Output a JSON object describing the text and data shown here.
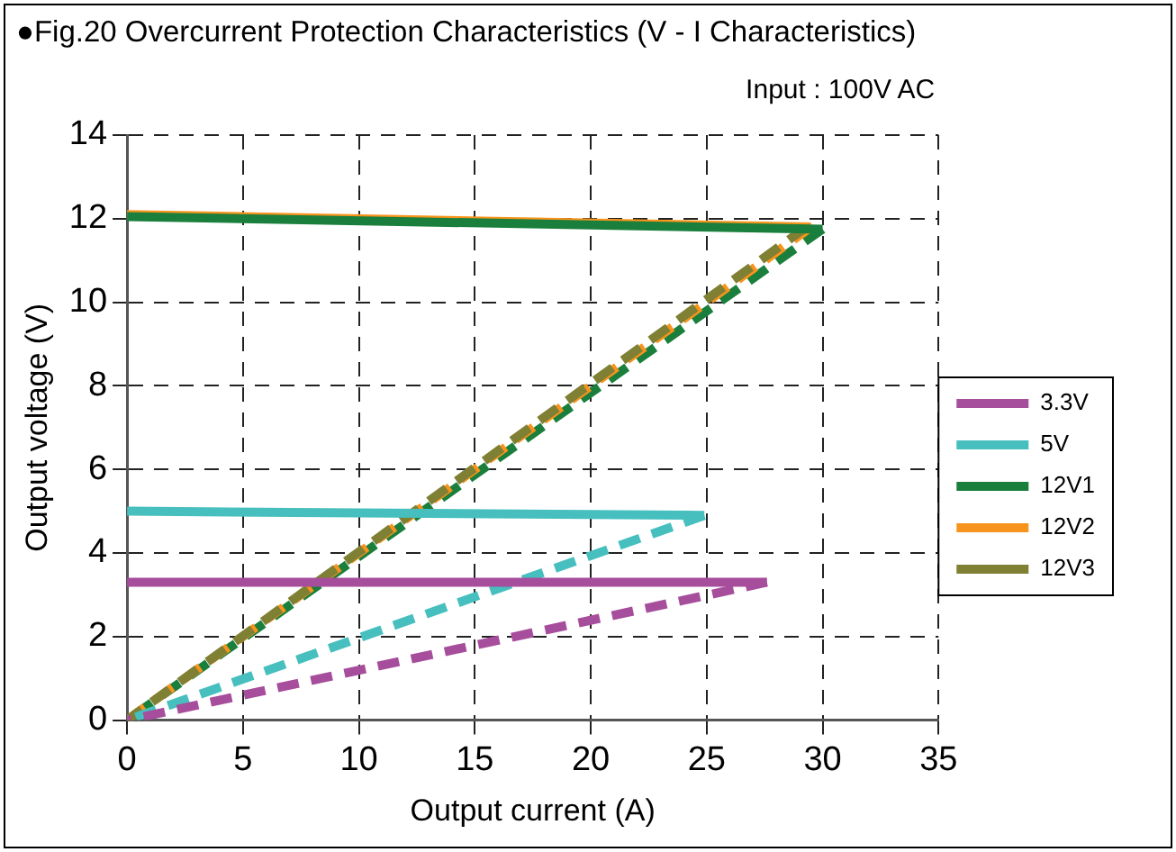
{
  "chart_data": {
    "type": "line",
    "title": "●Fig.20 Overcurrent Protection Characteristics (V - I Characteristics)",
    "xlabel": "Output current (A)",
    "ylabel": "Output voltage (V)",
    "annotations": [
      "Input : 100V AC"
    ],
    "xlim": [
      0,
      35
    ],
    "xticks": [
      0,
      5,
      10,
      15,
      20,
      25,
      30,
      35
    ],
    "ylim": [
      0,
      14
    ],
    "yticks": [
      0,
      2,
      4,
      6,
      8,
      10,
      12,
      14
    ],
    "grid": true,
    "legend": "right",
    "marker": "none",
    "series": [
      {
        "name": "3.3V",
        "color": "#a64d9c",
        "x": [
          0,
          27.6
        ],
        "values": [
          3.3,
          3.3
        ],
        "line_style": "solid"
      },
      {
        "name": "5V",
        "color": "#47bfbf",
        "x": [
          0,
          24.9
        ],
        "values": [
          5.0,
          4.9
        ],
        "line_style": "solid"
      },
      {
        "name": "12V1",
        "color": "#1a7f3c",
        "x": [
          0,
          30
        ],
        "values": [
          12.05,
          11.75
        ],
        "line_style": "solid"
      },
      {
        "name": "12V2",
        "color": "#f7941d",
        "x": [
          0,
          29.5
        ],
        "values": [
          12.1,
          11.8
        ],
        "line_style": "solid"
      },
      {
        "color": "#a64d9c",
        "x": [
          27.6,
          0
        ],
        "values": [
          3.3,
          0
        ],
        "line_style": "dashed"
      },
      {
        "color": "#47bfbf",
        "x": [
          24.9,
          0
        ],
        "values": [
          4.9,
          0
        ],
        "line_style": "dashed"
      },
      {
        "name": "12V3",
        "color": "#7f8033",
        "x": [
          29.3,
          0
        ],
        "values": [
          11.8,
          0
        ],
        "line_style": "dashed"
      },
      {
        "color": "#f7941d",
        "x": [
          29.5,
          0
        ],
        "values": [
          11.8,
          0
        ],
        "line_style": "dashed"
      },
      {
        "color": "#1a7f3c",
        "x": [
          30,
          0
        ],
        "values": [
          11.75,
          0
        ],
        "line_style": "dashed"
      }
    ]
  }
}
